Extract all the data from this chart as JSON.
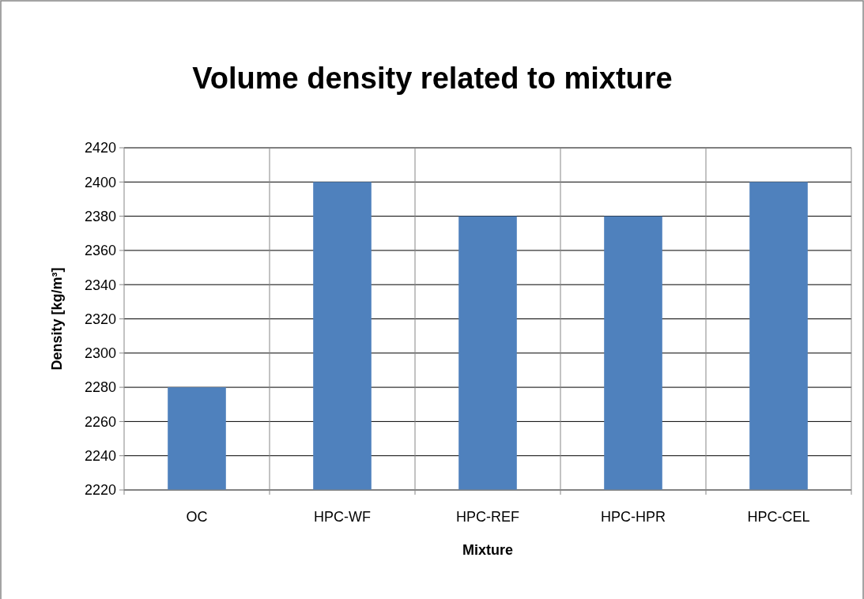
{
  "chart_data": {
    "type": "bar",
    "title": "Volume density related to mixture",
    "xlabel": "Mixture",
    "ylabel": "Density [kg/m³]",
    "categories": [
      "OC",
      "HPC-WF",
      "HPC-REF",
      "HPC-HPR",
      "HPC-CEL"
    ],
    "values": [
      2280,
      2400,
      2380,
      2380,
      2400
    ],
    "color": "#4f81bd",
    "ylim": [
      2220,
      2420
    ],
    "yticks": [
      2220,
      2240,
      2260,
      2280,
      2300,
      2320,
      2340,
      2360,
      2380,
      2400,
      2420
    ],
    "grid": true
  }
}
